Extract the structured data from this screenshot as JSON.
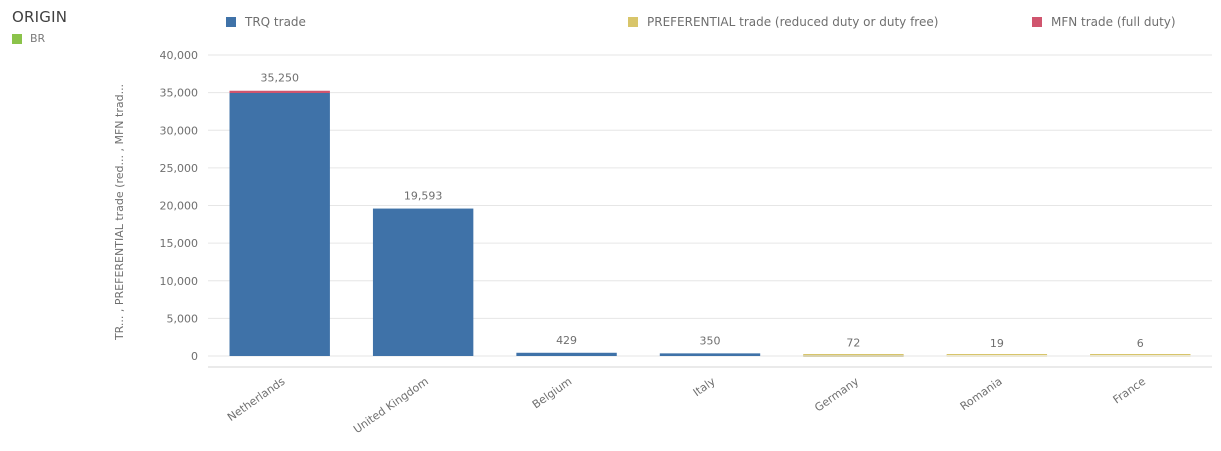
{
  "filter": {
    "title": "ORIGIN",
    "items": [
      {
        "label": "BR",
        "color": "#8bc34a"
      }
    ]
  },
  "colors": {
    "trq": "#3f72a8",
    "preferential": "#d8c56a",
    "mfn": "#d0556e",
    "grid": "#e6e6e6"
  },
  "chart_data": {
    "type": "bar",
    "stacked": true,
    "title": "",
    "ylabel": "TR... , PREFERENTIAL trade (red... , MFN trad...",
    "xlabel": "",
    "categories": [
      "Netherlands",
      "United Kingdom",
      "Belgium",
      "Italy",
      "Germany",
      "Romania",
      "France"
    ],
    "totals_labels": [
      "35,250",
      "19,593",
      "429",
      "350",
      "72",
      "19",
      "6"
    ],
    "ylim": [
      0,
      40000
    ],
    "yticks": [
      0,
      5000,
      10000,
      15000,
      20000,
      25000,
      30000,
      35000,
      40000
    ],
    "ytick_labels": [
      "0",
      "5,000",
      "10,000",
      "15,000",
      "20,000",
      "25,000",
      "30,000",
      "35,000",
      "40,000"
    ],
    "grid": true,
    "legend_position": "top",
    "series": [
      {
        "name": "TRQ trade",
        "color": "#3f72a8",
        "values": [
          34950,
          19593,
          429,
          350,
          0,
          0,
          0
        ]
      },
      {
        "name": "PREFERENTIAL trade (reduced duty or duty free)",
        "color": "#d8c56a",
        "values": [
          0,
          0,
          0,
          0,
          72,
          19,
          6
        ]
      },
      {
        "name": "MFN trade (full duty)",
        "color": "#d0556e",
        "values": [
          300,
          0,
          0,
          0,
          0,
          0,
          0
        ]
      }
    ]
  }
}
